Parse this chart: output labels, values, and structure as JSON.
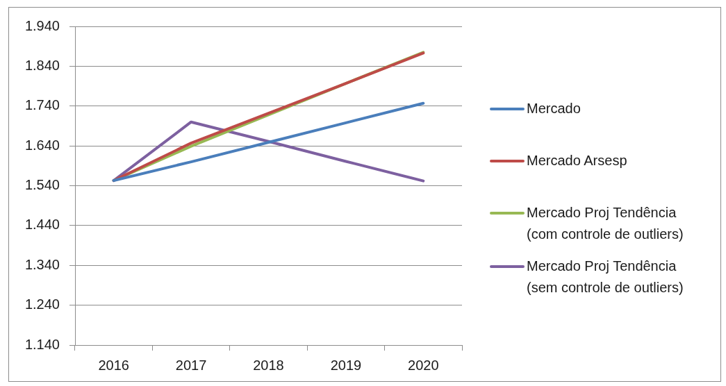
{
  "chart_data": {
    "type": "line",
    "categories": [
      "2016",
      "2017",
      "2018",
      "2019",
      "2020"
    ],
    "series": [
      {
        "name": "Mercado",
        "color": "#4a7ebb",
        "values": [
          1553,
          1600,
          1649,
          1698,
          1747
        ]
      },
      {
        "name": "Mercado Arsesp",
        "color": "#be4b48",
        "values": [
          1553,
          1647,
          1722,
          1797,
          1873
        ]
      },
      {
        "name": "Mercado Proj Tendência (com controle de outliers)",
        "color": "#98b954",
        "values": [
          1553,
          1639,
          1718,
          1797,
          1875
        ]
      },
      {
        "name": "Mercado Proj Tendência (sem controle de outliers)",
        "color": "#7d60a0",
        "values": [
          1553,
          1700,
          1651,
          1601,
          1552
        ]
      }
    ],
    "ylim": [
      1140,
      1940
    ],
    "yticks": [
      {
        "value": 1140,
        "label": "1.140"
      },
      {
        "value": 1240,
        "label": "1.240"
      },
      {
        "value": 1340,
        "label": "1.340"
      },
      {
        "value": 1440,
        "label": "1.440"
      },
      {
        "value": 1540,
        "label": "1.540"
      },
      {
        "value": 1640,
        "label": "1.640"
      },
      {
        "value": 1740,
        "label": "1.740"
      },
      {
        "value": 1840,
        "label": "1.840"
      },
      {
        "value": 1940,
        "label": "1.940"
      }
    ],
    "grid": "y",
    "legend": "right",
    "marker": "none",
    "line_style": "solid"
  }
}
